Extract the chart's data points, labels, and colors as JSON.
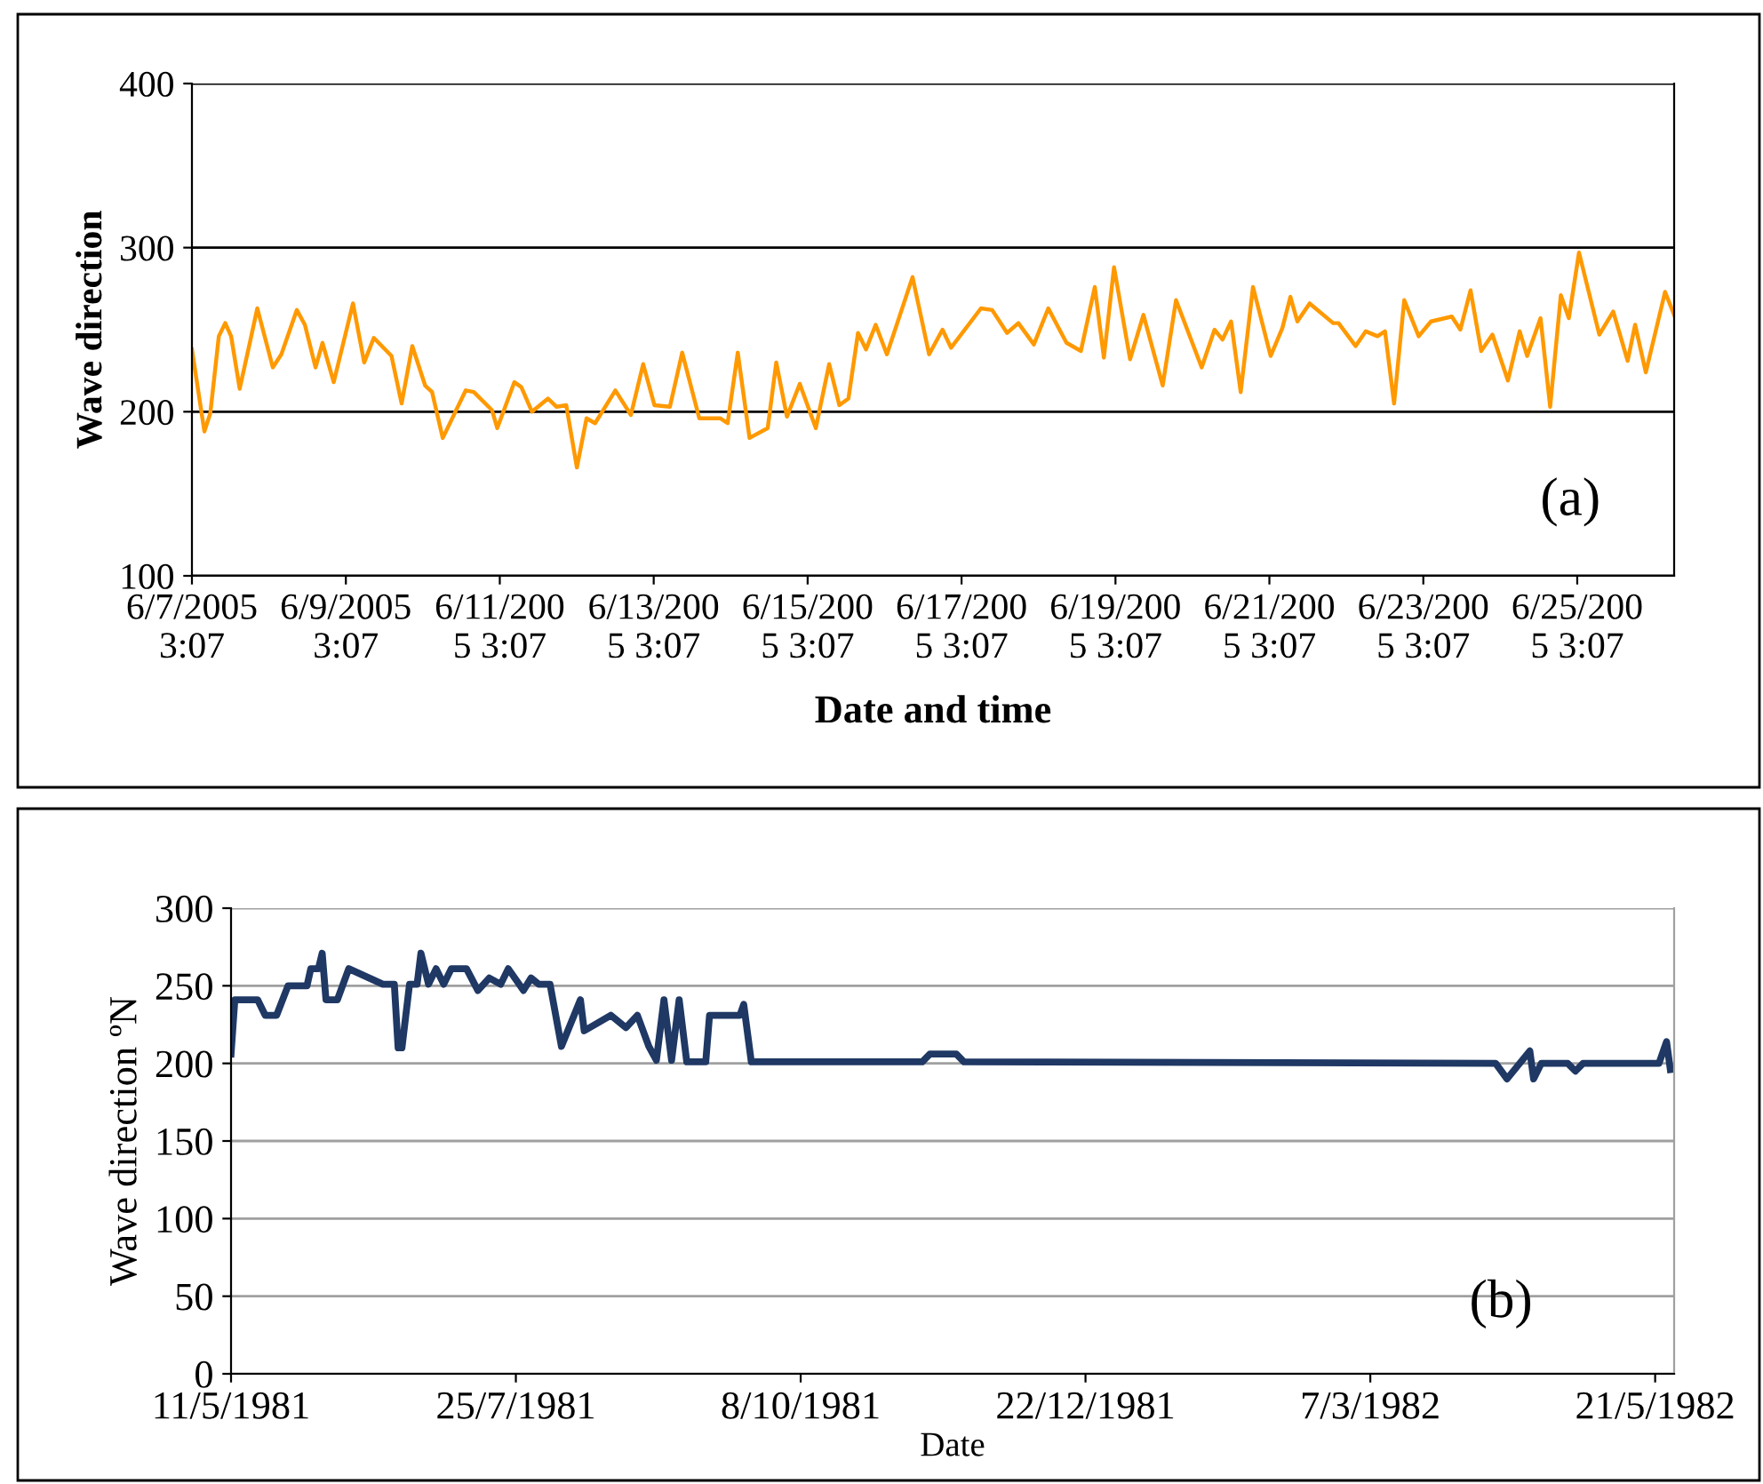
{
  "chart_data": [
    {
      "type": "line",
      "xlabel": "Date and time",
      "ylabel": "Wave direction",
      "annotations": [
        "(a)"
      ],
      "grid": "y",
      "xlim": [
        "2005-06-07T03:07",
        "2005-06-26T09:20"
      ],
      "ylim": [
        100,
        400
      ],
      "yticks": [
        100,
        200,
        300,
        400
      ],
      "xticks": [
        {
          "value": "2005-06-07T03:07",
          "label": "6/7/2005\n3:07"
        },
        {
          "value": "2005-06-09T03:07",
          "label": "6/9/2005\n3:07"
        },
        {
          "value": "2005-06-11T03:07",
          "label": "6/11/200\n5 3:07"
        },
        {
          "value": "2005-06-13T03:07",
          "label": "6/13/200\n5 3:07"
        },
        {
          "value": "2005-06-15T03:07",
          "label": "6/15/200\n5 3:07"
        },
        {
          "value": "2005-06-17T03:07",
          "label": "6/17/200\n5 3:07"
        },
        {
          "value": "2005-06-19T03:07",
          "label": "6/19/200\n5 3:07"
        },
        {
          "value": "2005-06-21T03:07",
          "label": "6/21/200\n5 3:07"
        },
        {
          "value": "2005-06-23T03:07",
          "label": "6/23/200\n5 3:07"
        },
        {
          "value": "2005-06-25T03:07",
          "label": "6/25/200\n5 3:07"
        }
      ],
      "x": [
        "2005-06-07T03:07",
        "2005-06-07T07:00",
        "2005-06-07T08:50",
        "2005-06-07T11:30",
        "2005-06-07T13:30",
        "2005-06-07T15:20",
        "2005-06-07T18:00",
        "2005-06-07T20:50",
        "2005-06-07T23:30",
        "2005-06-08T04:20",
        "2005-06-08T07:00",
        "2005-06-08T11:50",
        "2005-06-08T14:20",
        "2005-06-08T17:40",
        "2005-06-08T19:50",
        "2005-06-08T23:20",
        "2005-06-09T05:20",
        "2005-06-09T08:50",
        "2005-06-09T11:50",
        "2005-06-09T17:20",
        "2005-06-09T20:30",
        "2005-06-09T23:50",
        "2005-06-10T03:50",
        "2005-06-10T06:00",
        "2005-06-10T09:20",
        "2005-06-10T16:30",
        "2005-06-10T19:00",
        "2005-06-11T00:40",
        "2005-06-11T02:20",
        "2005-06-11T07:40",
        "2005-06-11T09:50",
        "2005-06-11T13:10",
        "2005-06-11T18:10",
        "2005-06-11T20:50",
        "2005-06-11T23:50",
        "2005-06-12T03:10",
        "2005-06-12T06:10",
        "2005-06-12T08:50",
        "2005-06-12T15:10",
        "2005-06-12T20:00",
        "2005-06-12T23:50",
        "2005-06-13T03:20",
        "2005-06-13T08:10",
        "2005-06-13T12:00",
        "2005-06-13T17:20",
        "2005-06-13T23:50",
        "2005-06-14T02:10",
        "2005-06-14T05:20",
        "2005-06-14T09:00",
        "2005-06-14T14:40",
        "2005-06-14T17:20",
        "2005-06-14T20:40",
        "2005-06-15T00:40",
        "2005-06-15T05:40",
        "2005-06-15T09:50",
        "2005-06-15T13:00",
        "2005-06-15T15:50",
        "2005-06-15T18:50",
        "2005-06-15T21:20",
        "2005-06-16T00:20",
        "2005-06-16T03:50",
        "2005-06-16T11:50",
        "2005-06-16T17:00",
        "2005-06-16T21:10",
        "2005-06-16T23:50",
        "2005-06-17T09:10",
        "2005-06-17T12:40",
        "2005-06-17T17:20",
        "2005-06-17T20:50",
        "2005-06-18T01:40",
        "2005-06-18T06:10",
        "2005-06-18T11:50",
        "2005-06-18T16:20",
        "2005-06-18T20:40",
        "2005-06-18T23:30",
        "2005-06-19T02:40",
        "2005-06-19T07:40",
        "2005-06-19T11:50",
        "2005-06-19T17:50",
        "2005-06-19T22:00",
        "2005-06-20T06:00",
        "2005-06-20T10:00",
        "2005-06-20T12:30",
        "2005-06-20T15:10",
        "2005-06-20T18:10",
        "2005-06-20T22:00",
        "2005-06-21T03:30",
        "2005-06-21T07:10",
        "2005-06-21T09:40",
        "2005-06-21T11:50",
        "2005-06-21T15:40",
        "2005-06-21T23:00",
        "2005-06-22T00:40",
        "2005-06-22T06:00",
        "2005-06-22T09:10",
        "2005-06-22T12:50",
        "2005-06-22T15:10",
        "2005-06-22T18:00",
        "2005-06-22T21:10",
        "2005-06-23T01:40",
        "2005-06-23T05:30",
        "2005-06-23T12:00",
        "2005-06-23T14:40",
        "2005-06-23T17:50",
        "2005-06-23T21:10",
        "2005-06-24T00:40",
        "2005-06-24T05:30",
        "2005-06-24T09:10",
        "2005-06-24T11:30",
        "2005-06-24T15:40",
        "2005-06-24T18:40",
        "2005-06-24T22:00",
        "2005-06-25T00:30",
        "2005-06-25T03:40",
        "2005-06-25T10:00",
        "2005-06-25T14:20",
        "2005-06-25T18:50",
        "2005-06-25T21:10",
        "2005-06-26T00:30",
        "2005-06-26T06:30",
        "2005-06-26T09:20"
      ],
      "series": [
        {
          "color": "#ff9900",
          "values": [
            238,
            188,
            199,
            246,
            254,
            246,
            214,
            239,
            263,
            227,
            235,
            262,
            253,
            227,
            242,
            218,
            266,
            230,
            245,
            234,
            205,
            240,
            216,
            212,
            184,
            213,
            212,
            201,
            190,
            218,
            215,
            200,
            208,
            203,
            204,
            166,
            196,
            193,
            213,
            198,
            229,
            204,
            203,
            236,
            196,
            196,
            193,
            236,
            184,
            190,
            230,
            197,
            217,
            190,
            229,
            204,
            208,
            248,
            238,
            253,
            235,
            282,
            235,
            250,
            239,
            263,
            262,
            248,
            254,
            241,
            263,
            242,
            237,
            276,
            233,
            288,
            232,
            259,
            216,
            268,
            227,
            250,
            244,
            255,
            212,
            276,
            234,
            251,
            270,
            255,
            266,
            254,
            254,
            240,
            249,
            246,
            249,
            205,
            268,
            246,
            255,
            258,
            250,
            274,
            237,
            247,
            219,
            249,
            234,
            257,
            203,
            271,
            257,
            297,
            247,
            261,
            231,
            253,
            224,
            273,
            259
          ]
        }
      ]
    },
    {
      "type": "line",
      "xlabel": "Date",
      "ylabel": "Wave direction ºN",
      "annotations": [
        "(b)"
      ],
      "grid": "y",
      "xlim": [
        "1981-05-11",
        "1982-05-26"
      ],
      "ylim": [
        0,
        300
      ],
      "yticks": [
        0,
        50,
        100,
        150,
        200,
        250,
        300
      ],
      "xticks": [
        {
          "value": "1981-05-11",
          "label": "11/5/1981"
        },
        {
          "value": "1981-07-25",
          "label": "25/7/1981"
        },
        {
          "value": "1981-10-08",
          "label": "8/10/1981"
        },
        {
          "value": "1981-12-22",
          "label": "22/12/1981"
        },
        {
          "value": "1982-03-07",
          "label": "7/3/1982"
        },
        {
          "value": "1982-05-21",
          "label": "21/5/1982"
        }
      ],
      "x": [
        "1981-05-11",
        "1981-05-12",
        "1981-05-18",
        "1981-05-20",
        "1981-05-23",
        "1981-05-26",
        "1981-05-31",
        "1981-06-01",
        "1981-06-03",
        "1981-06-04",
        "1981-06-05",
        "1981-06-08",
        "1981-06-11",
        "1981-06-20",
        "1981-06-23",
        "1981-06-24",
        "1981-06-25",
        "1981-06-27",
        "1981-06-29",
        "1981-06-30",
        "1981-07-02",
        "1981-07-04",
        "1981-07-06",
        "1981-07-08",
        "1981-07-12",
        "1981-07-15",
        "1981-07-18",
        "1981-07-21",
        "1981-07-23",
        "1981-07-27",
        "1981-07-29",
        "1981-07-31",
        "1981-08-03",
        "1981-08-06",
        "1981-08-11",
        "1981-08-12",
        "1981-08-19",
        "1981-08-23",
        "1981-08-26",
        "1981-08-29",
        "1981-08-31",
        "1981-09-02",
        "1981-09-04",
        "1981-09-06",
        "1981-09-08",
        "1981-09-13",
        "1981-09-14",
        "1981-09-22",
        "1981-09-23",
        "1981-09-25",
        "1981-11-09",
        "1981-11-11",
        "1981-11-18",
        "1981-11-20",
        "1982-04-09",
        "1982-04-12",
        "1982-04-15",
        "1982-04-18",
        "1982-04-19",
        "1982-04-21",
        "1982-04-28",
        "1982-04-30",
        "1982-05-02",
        "1982-05-22",
        "1982-05-24",
        "1982-05-25"
      ],
      "series": [
        {
          "color": "#1f3864",
          "values": [
            206,
            241,
            241,
            231,
            231,
            250,
            250,
            261,
            261,
            271,
            241,
            241,
            261,
            251,
            251,
            210,
            210,
            251,
            251,
            271,
            251,
            261,
            251,
            261,
            261,
            247,
            255,
            251,
            261,
            247,
            255,
            251,
            251,
            211,
            241,
            221,
            231,
            223,
            231,
            211,
            202,
            241,
            202,
            241,
            201,
            201,
            231,
            231,
            238,
            201,
            201,
            206,
            206,
            201,
            200,
            190,
            199,
            208,
            190,
            200,
            200,
            195,
            200,
            200,
            214,
            196
          ]
        }
      ]
    }
  ]
}
